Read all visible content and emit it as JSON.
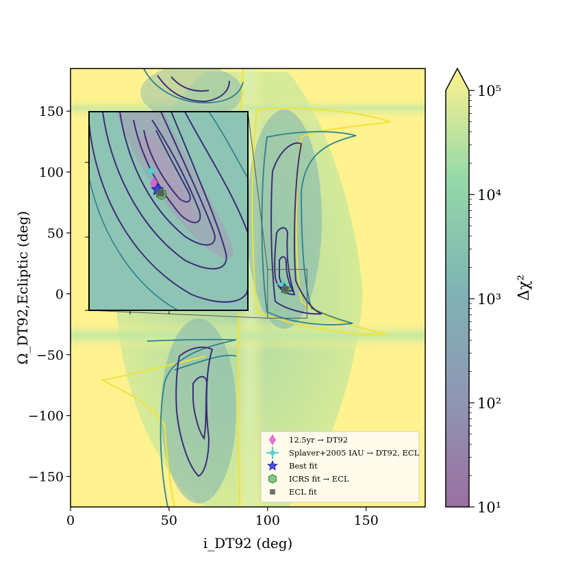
{
  "chart_data": {
    "type": "heatmap",
    "title": "",
    "xlabel": "i_DT92 (deg)",
    "ylabel": "Ω_DT92,Ecliptic (deg)",
    "xlim": [
      0,
      180
    ],
    "ylim": [
      -175,
      185
    ],
    "x_ticks": [
      0,
      50,
      100,
      150
    ],
    "y_ticks": [
      150,
      100,
      50,
      0,
      -50,
      -100,
      -150
    ],
    "x_tick_labels": [
      "0",
      "50",
      "100",
      "150"
    ],
    "y_tick_labels": [
      "150",
      "100",
      "50",
      "0",
      "−50",
      "−100",
      "−150"
    ],
    "colorbar": {
      "label": "Δχ²",
      "scale": "log",
      "range": [
        10,
        100000
      ],
      "tick_labels": [
        "10¹",
        "10²",
        "10³",
        "10⁴",
        "10⁵"
      ],
      "extend": "max",
      "colors": [
        "#9b6fa0",
        "#8f97b5",
        "#7fb4b4",
        "#95d9a8",
        "#fff28f"
      ]
    },
    "points": [
      {
        "name": "12.5yr → DT92",
        "x": 108.2,
        "y": 5.5,
        "marker": "diamond",
        "color": "#e055d0"
      },
      {
        "name": "Splaver+2005 IAU → DT92, ECL",
        "x": 107.8,
        "y": 8.0,
        "marker": "cross",
        "color": "#4fd1c9"
      },
      {
        "name": "Best fit",
        "x": 108.6,
        "y": 4.3,
        "marker": "star",
        "color": "#2b32e0"
      },
      {
        "name": "ICRS fit → ECL",
        "x": 109.1,
        "y": 3.4,
        "marker": "hexagon",
        "color": "#5cb85c"
      },
      {
        "name": "ECL fit",
        "x": 109.0,
        "y": 3.6,
        "marker": "square",
        "color": "#555555"
      }
    ],
    "inset": {
      "xlim": [
        100,
        120
      ],
      "ylim": [
        -20,
        20
      ]
    },
    "legend": {
      "placement": "lower-right",
      "entries": [
        "12.5yr → DT92",
        "Splaver+2005 IAU → DT92, ECL",
        "Best fit",
        "ICRS fit → ECL",
        "ECL fit"
      ]
    },
    "grid": false
  }
}
